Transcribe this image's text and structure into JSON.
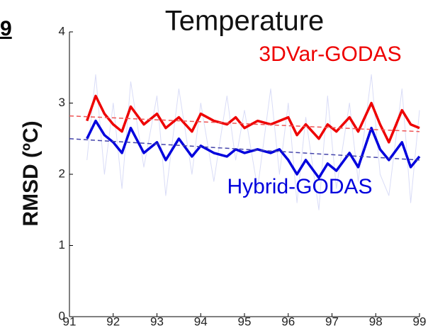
{
  "corner_text": "9",
  "chart_data": {
    "type": "line",
    "title": "Temperature",
    "y_label": "RMSD (ºC)",
    "x": [
      91.4,
      91.6,
      91.8,
      92.0,
      92.2,
      92.4,
      92.7,
      93.0,
      93.2,
      93.5,
      93.8,
      94.0,
      94.3,
      94.6,
      94.8,
      95.0,
      95.3,
      95.6,
      95.8,
      96.0,
      96.2,
      96.4,
      96.7,
      96.9,
      97.1,
      97.4,
      97.6,
      97.9,
      98.1,
      98.3,
      98.6,
      98.8,
      99.0
    ],
    "series": [
      {
        "color": "#d9dcf7",
        "width": 1,
        "values": [
          2.2,
          3.4,
          2.0,
          3.0,
          1.8,
          3.3,
          2.1,
          3.1,
          1.7,
          3.2,
          2.0,
          3.0,
          1.9,
          3.1,
          2.2,
          2.9,
          1.8,
          3.2,
          2.0,
          3.0,
          1.6,
          2.8,
          1.5,
          3.1,
          1.8,
          3.0,
          1.9,
          3.4,
          2.0,
          1.7,
          3.2,
          1.6,
          2.9
        ]
      },
      {
        "name": "3DVar-GODAS",
        "color": "#ee0000",
        "width": 3.5,
        "values": [
          2.75,
          3.1,
          2.85,
          2.7,
          2.6,
          2.95,
          2.7,
          2.85,
          2.65,
          2.8,
          2.6,
          2.85,
          2.75,
          2.7,
          2.8,
          2.65,
          2.75,
          2.7,
          2.75,
          2.8,
          2.55,
          2.7,
          2.5,
          2.7,
          2.6,
          2.8,
          2.6,
          3.0,
          2.7,
          2.45,
          2.9,
          2.7,
          2.65
        ]
      },
      {
        "name": "Hybrid-GODAS",
        "color": "#0000dd",
        "width": 3.5,
        "values": [
          2.5,
          2.75,
          2.55,
          2.45,
          2.3,
          2.65,
          2.3,
          2.45,
          2.2,
          2.5,
          2.25,
          2.4,
          2.3,
          2.25,
          2.35,
          2.3,
          2.35,
          2.3,
          2.35,
          2.2,
          2.0,
          2.2,
          1.95,
          2.15,
          2.05,
          2.3,
          2.1,
          2.65,
          2.35,
          2.2,
          2.45,
          2.1,
          2.25
        ]
      },
      {
        "color": "#ee5555",
        "width": 1.5,
        "dashed": true,
        "x": [
          91,
          99
        ],
        "values": [
          2.82,
          2.6
        ]
      },
      {
        "color": "#4444aa",
        "width": 1.5,
        "dashed": true,
        "x": [
          91,
          99
        ],
        "values": [
          2.5,
          2.2
        ]
      }
    ],
    "xlim": [
      91,
      99
    ],
    "xticks": [
      91,
      92,
      93,
      94,
      95,
      96,
      97,
      98,
      99
    ],
    "ylim": [
      0,
      4
    ],
    "yticks": [
      0,
      1,
      2,
      3,
      4
    ]
  }
}
